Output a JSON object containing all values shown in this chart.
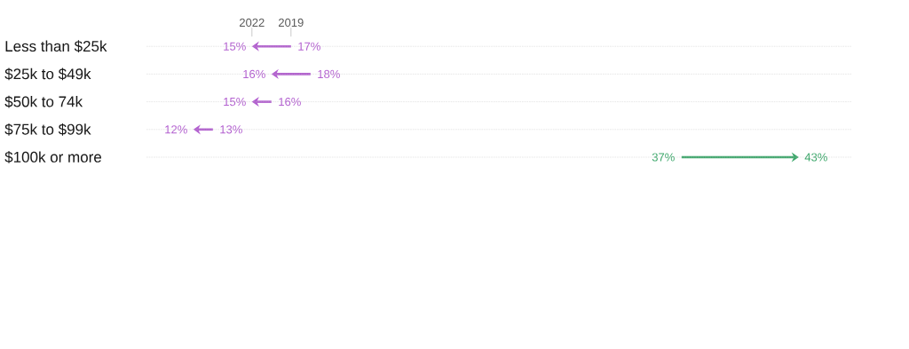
{
  "chart_data": {
    "type": "other",
    "categories": [
      "Less than $25k",
      "$25k to $49k",
      "$50k to 74k",
      "$75k to $99k",
      "$100k or more"
    ],
    "series": [
      {
        "name": "2019",
        "values": [
          17,
          18,
          16,
          13,
          37
        ],
        "value_labels": [
          "17%",
          "18%",
          "16%",
          "13%",
          "37%"
        ],
        "colors": [
          "#b360d0",
          "#b360d0",
          "#b360d0",
          "#b360d0",
          "#3ea86c"
        ]
      },
      {
        "name": "2022",
        "values": [
          15,
          16,
          15,
          12,
          43
        ],
        "value_labels": [
          "15%",
          "16%",
          "15%",
          "12%",
          "43%"
        ],
        "colors": [
          "#b360d0",
          "#b360d0",
          "#b360d0",
          "#b360d0",
          "#3ea86c"
        ]
      }
    ]
  }
}
